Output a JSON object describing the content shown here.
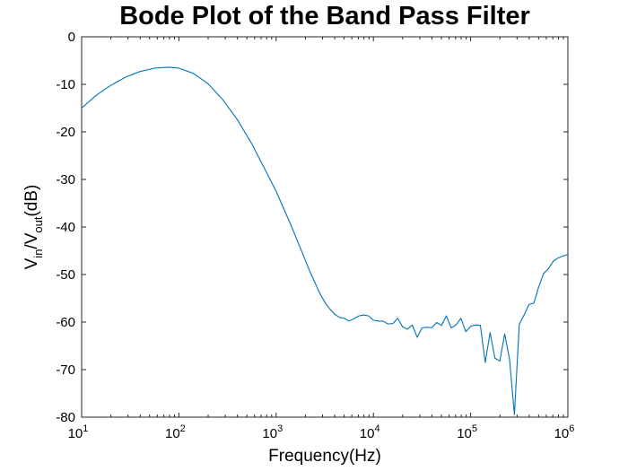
{
  "chart_data": {
    "type": "line",
    "title": "Bode Plot of the Band Pass Filter",
    "xlabel": "Frequency(Hz)",
    "ylabel": {
      "parts": [
        "V",
        "in",
        "/V",
        "out",
        "(dB)"
      ]
    },
    "x_scale": "log",
    "xlim": [
      10,
      1000000
    ],
    "ylim": [
      -80,
      0
    ],
    "x_ticks": [
      {
        "base": "10",
        "exp": "1"
      },
      {
        "base": "10",
        "exp": "2"
      },
      {
        "base": "10",
        "exp": "3"
      },
      {
        "base": "10",
        "exp": "4"
      },
      {
        "base": "10",
        "exp": "5"
      },
      {
        "base": "10",
        "exp": "6"
      }
    ],
    "y_ticks": [
      "0",
      "-10",
      "-20",
      "-30",
      "-40",
      "-50",
      "-60",
      "-70",
      "-80"
    ],
    "grid": false,
    "color": "#0072BD",
    "series": [
      {
        "x": [
          10,
          14.1,
          20,
          28.2,
          39.8,
          56.2,
          79.4,
          100,
          141,
          200,
          282,
          398,
          562,
          794,
          1000,
          1413,
          1778,
          2239,
          2818,
          3162,
          3548,
          3981,
          4467,
          5012,
          5623,
          6310,
          7079,
          7943,
          8913,
          10000,
          11220,
          12589,
          14125,
          15849,
          17783,
          19953,
          22387,
          25119,
          28184,
          31623,
          35481,
          39811,
          44668,
          50119,
          56234,
          63096,
          70795,
          79433,
          89125,
          100000,
          112202,
          125893,
          141254,
          158489,
          177828,
          199526,
          223872,
          251189,
          281838,
          316228,
          354813,
          398107,
          446684,
          501187,
          562341,
          630957,
          707946,
          794328,
          891251,
          1000000
        ],
        "y": [
          -15,
          -12.3,
          -10.2,
          -8.5,
          -7.3,
          -6.6,
          -6.4,
          -6.6,
          -7.7,
          -9.9,
          -13.2,
          -17.4,
          -22.5,
          -28.5,
          -32.5,
          -39.5,
          -44.5,
          -49.5,
          -54,
          -55.8,
          -57.2,
          -58.3,
          -59,
          -59.2,
          -59.8,
          -59.3,
          -58.7,
          -58.5,
          -58.7,
          -59.6,
          -59.8,
          -59.8,
          -60.4,
          -60.3,
          -59.2,
          -61,
          -61.5,
          -60.6,
          -63.2,
          -61.2,
          -61.1,
          -61.2,
          -60.1,
          -60.7,
          -58.7,
          -61.2,
          -60.6,
          -59.2,
          -62,
          -60.9,
          -60.6,
          -60.7,
          -68.5,
          -62.2,
          -67.6,
          -68.2,
          -62.5,
          -67.8,
          -79.5,
          -60.5,
          -58.5,
          -56.3,
          -56,
          -52.6,
          -49.8,
          -48.8,
          -47.2,
          -46.5,
          -46.1,
          -45.8
        ]
      }
    ]
  }
}
